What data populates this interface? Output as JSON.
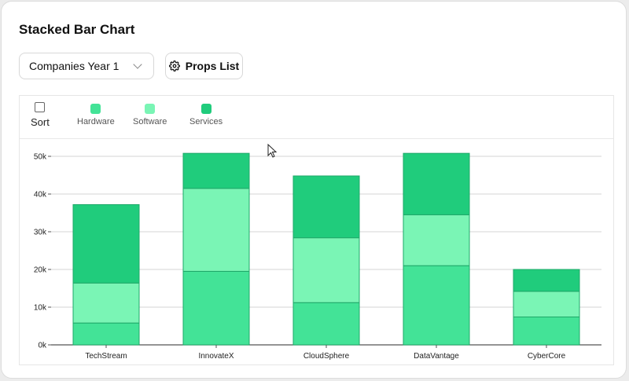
{
  "header": {
    "title": "Stacked Bar Chart"
  },
  "controls": {
    "dataset_select": "Companies Year 1",
    "props_button": "Props List"
  },
  "legend": {
    "sort_label": "Sort",
    "sort_checked": false,
    "items": [
      {
        "label": "Hardware",
        "color": "#43e397"
      },
      {
        "label": "Software",
        "color": "#7af5b5"
      },
      {
        "label": "Services",
        "color": "#20cc7c"
      }
    ]
  },
  "chart_data": {
    "type": "bar",
    "stacked": true,
    "categories": [
      "TechStream",
      "InnovateX",
      "CloudSphere",
      "DataVantage",
      "CyberCore"
    ],
    "series": [
      {
        "name": "Hardware",
        "color": "#43e397",
        "values": [
          5800,
          19500,
          11200,
          21000,
          7400
        ]
      },
      {
        "name": "Software",
        "color": "#7af5b5",
        "values": [
          10600,
          22000,
          17200,
          13500,
          6800
        ]
      },
      {
        "name": "Services",
        "color": "#20cc7c",
        "values": [
          20800,
          9300,
          16400,
          16300,
          5800
        ]
      }
    ],
    "ylim": [
      0,
      50000
    ],
    "yticks": [
      0,
      10000,
      20000,
      30000,
      40000,
      50000
    ],
    "ytick_labels": [
      "0k",
      "10k",
      "20k",
      "30k",
      "40k",
      "50k"
    ],
    "grid": true,
    "bar_stroke": "#1fa869"
  }
}
